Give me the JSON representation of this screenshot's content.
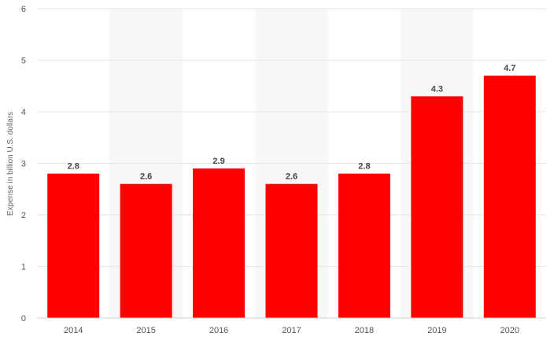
{
  "chart_data": {
    "type": "bar",
    "categories": [
      "2014",
      "2015",
      "2016",
      "2017",
      "2018",
      "2019",
      "2020"
    ],
    "values": [
      2.8,
      2.6,
      2.9,
      2.6,
      2.8,
      4.3,
      4.7
    ],
    "data_labels": [
      "2.8",
      "2.6",
      "2.9",
      "2.6",
      "2.8",
      "4.3",
      "4.7"
    ],
    "title": "",
    "xlabel": "",
    "ylabel": "Expense in billion U.S. dollars",
    "ylim": [
      0,
      6
    ],
    "yticks": [
      0,
      1,
      2,
      3,
      4,
      5,
      6
    ],
    "ytick_labels": [
      "0",
      "1",
      "2",
      "3",
      "4",
      "5",
      "6"
    ],
    "grid": true,
    "bar_color": "#ff0000",
    "band_color": "#f7f7f7"
  }
}
